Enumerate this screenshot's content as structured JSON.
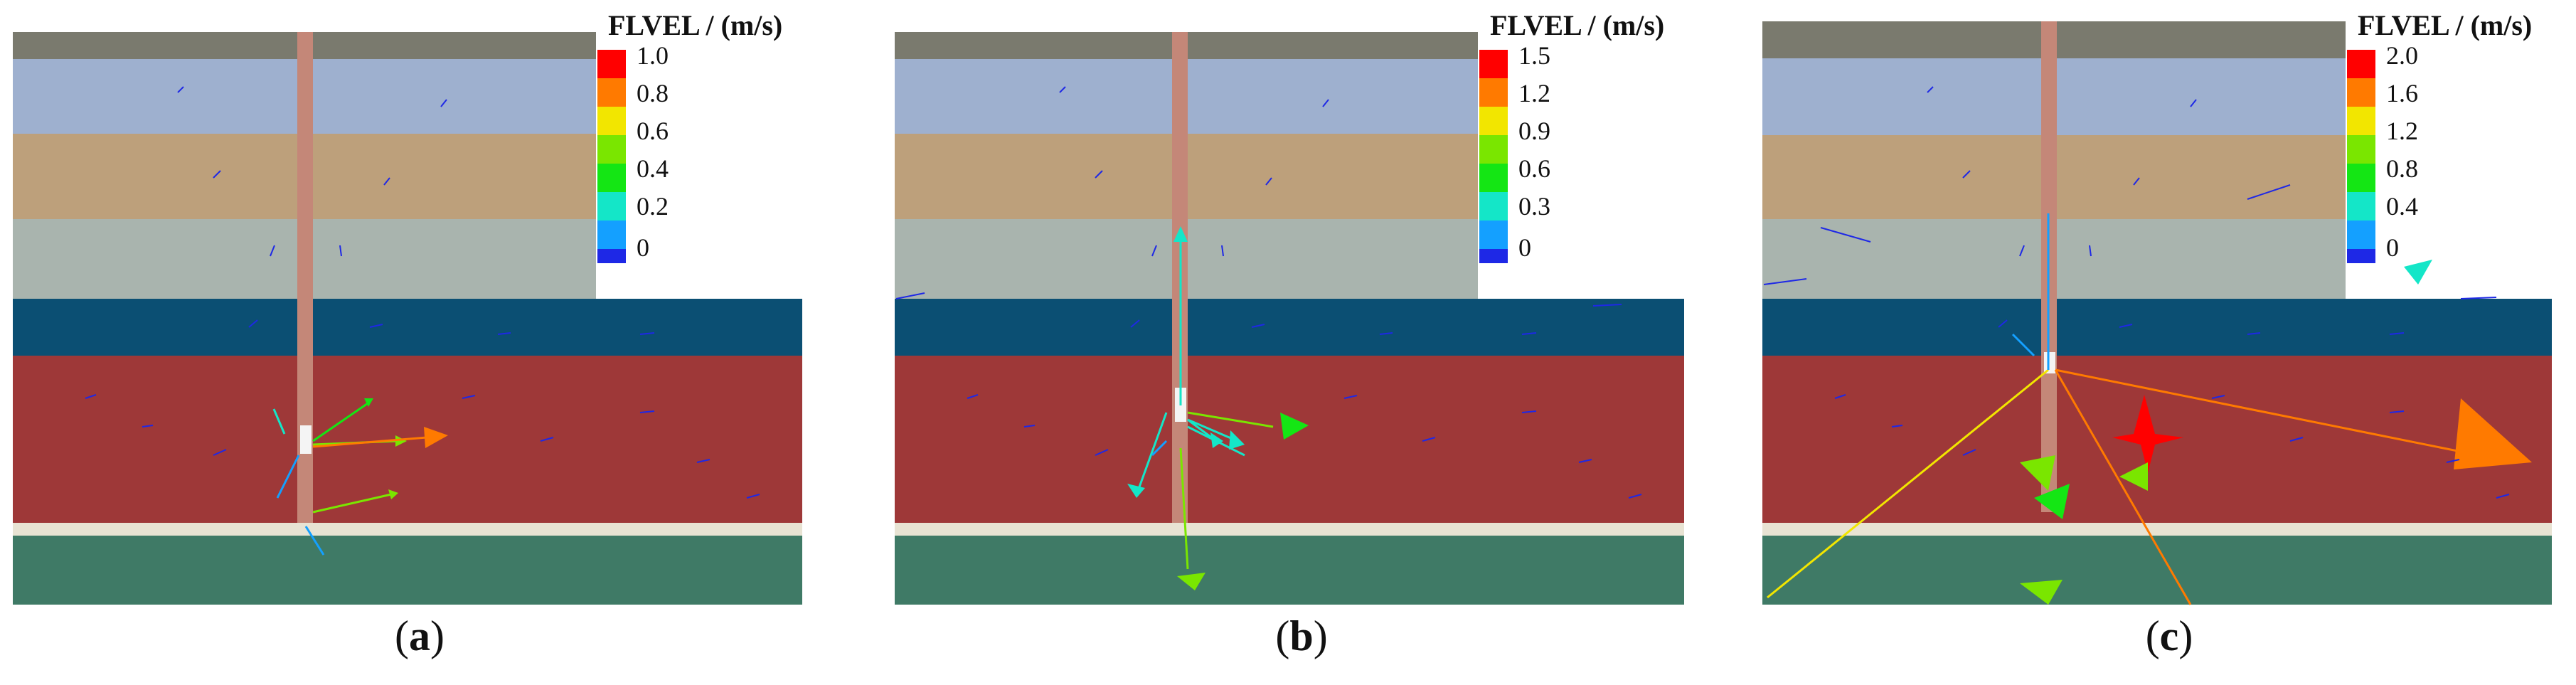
{
  "panels": [
    {
      "legend_title": "FLVEL / (m/s)",
      "legend_ticks": [
        "1.0",
        "0.8",
        "0.6",
        "0.4",
        "0.2",
        "0"
      ],
      "caption_label": "a"
    },
    {
      "legend_title": "FLVEL / (m/s)",
      "legend_ticks": [
        "1.5",
        "1.2",
        "0.9",
        "0.6",
        "0.3",
        "0"
      ],
      "caption_label": "b"
    },
    {
      "legend_title": "FLVEL / (m/s)",
      "legend_ticks": [
        "2.0",
        "1.6",
        "1.2",
        "0.8",
        "0.4",
        "0"
      ],
      "caption_label": "c"
    }
  ],
  "caption_open": "(",
  "caption_close": ")",
  "colors": {
    "top_layer": "#7a7a6e",
    "layer_blue": "#9eb0cf",
    "layer_tan": "#bda07b",
    "layer_grey": "#a9b4ae",
    "layer_navy": "#0b4f73",
    "layer_red": "#9e3838",
    "layer_cream": "#e8e3d3",
    "layer_green": "#3f7a66",
    "pile": "#c48778",
    "legend_scale": [
      "#ff0000",
      "#ff7a00",
      "#f2e600",
      "#7ae600",
      "#14e614",
      "#14e6c8",
      "#14a0ff",
      "#1e28e6"
    ]
  }
}
